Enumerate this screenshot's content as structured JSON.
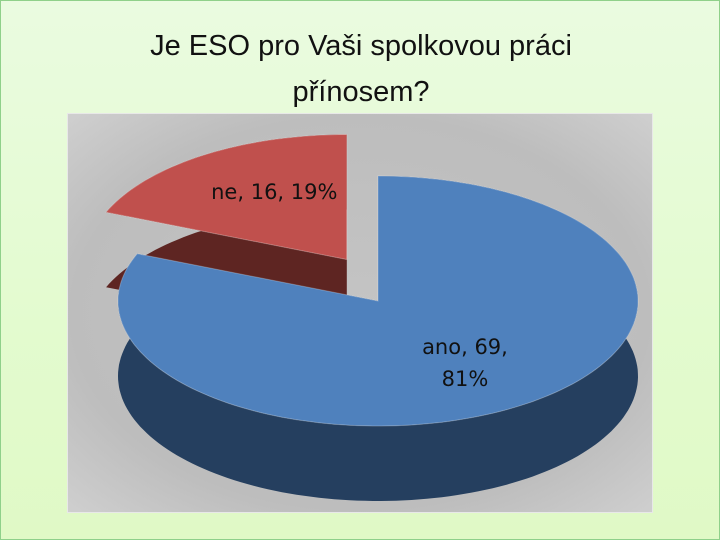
{
  "chart_data": {
    "type": "pie3d",
    "title": "Je ESO pro Vaši spolkovou práci přínosem?",
    "categories": [
      "ano",
      "ne"
    ],
    "values": [
      69,
      16
    ],
    "value_labels": [
      "ano, 69, 81%",
      "ne, 16, 19%"
    ],
    "colors": [
      "#4f81bd",
      "#c0504d"
    ],
    "side_colors": [
      "#253f5f",
      "#5e2522"
    ],
    "exploded": [
      false,
      true
    ]
  }
}
